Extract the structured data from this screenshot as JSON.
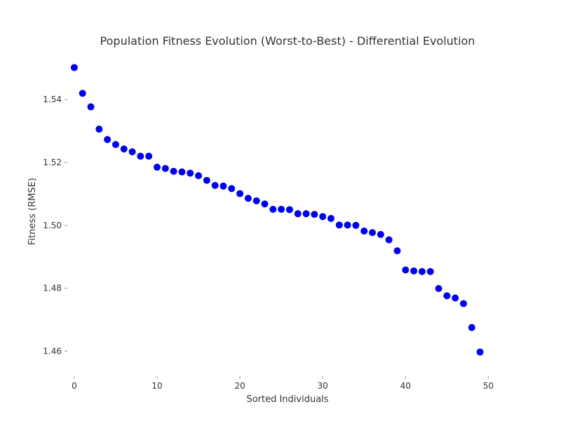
{
  "chart_data": {
    "type": "scatter",
    "title": "Population Fitness Evolution (Worst-to-Best) - Differential Evolution",
    "xlabel": "Sorted Individuals",
    "ylabel": "Fitness (RMSE)",
    "xlim": [
      -0.5,
      52
    ],
    "ylim": [
      1.4525,
      1.5552
    ],
    "xticks": [
      0,
      10,
      20,
      30,
      40,
      50
    ],
    "yticks": [
      1.46,
      1.48,
      1.5,
      1.52,
      1.54
    ],
    "ytick_labels": [
      "1.46",
      "1.48",
      "1.50",
      "1.52",
      "1.54"
    ],
    "grid": false,
    "legend": "none",
    "marker_color": "#0000ee",
    "series": [
      {
        "x": [
          0,
          1,
          2,
          3,
          4,
          5,
          6,
          7,
          8,
          9,
          10,
          11,
          12,
          13,
          14,
          15,
          16,
          17,
          18,
          19,
          20,
          21,
          22,
          23,
          24,
          25,
          26,
          27,
          28,
          29,
          30,
          31,
          32,
          33,
          34,
          35,
          36,
          37,
          38,
          39,
          40,
          41,
          42,
          43,
          44,
          45,
          46,
          47,
          48,
          49
        ],
        "y": [
          1.5502,
          1.542,
          1.5377,
          1.5306,
          1.5273,
          1.5257,
          1.5243,
          1.5234,
          1.522,
          1.522,
          1.5185,
          1.5181,
          1.5172,
          1.517,
          1.5166,
          1.5158,
          1.5143,
          1.5127,
          1.5125,
          1.5117,
          1.5101,
          1.5086,
          1.5078,
          1.5068,
          1.5051,
          1.5051,
          1.505,
          1.5037,
          1.5037,
          1.5035,
          1.5028,
          1.5022,
          1.5001,
          1.5001,
          1.5,
          1.4982,
          1.4977,
          1.4971,
          1.4954,
          1.4919,
          1.4858,
          1.4855,
          1.4853,
          1.4853,
          1.4799,
          1.4776,
          1.4769,
          1.4751,
          1.4675,
          1.4597
        ]
      }
    ]
  }
}
